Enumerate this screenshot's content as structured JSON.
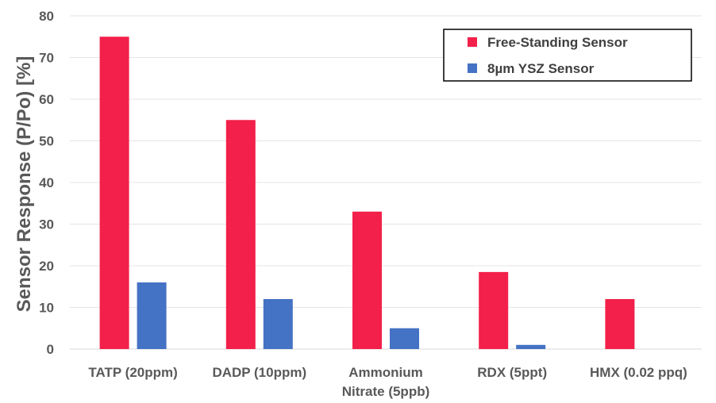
{
  "chart_data": {
    "type": "bar",
    "title": "",
    "xlabel": "",
    "ylabel": "Sensor Response (P/Po) [%]",
    "ylim": [
      0,
      80
    ],
    "yticks": [
      "0",
      "10",
      "20",
      "30",
      "40",
      "50",
      "60",
      "70",
      "80"
    ],
    "grid": true,
    "legend_position": "top-right",
    "categories": [
      [
        "TATP (20ppm)"
      ],
      [
        "DADP (10ppm)"
      ],
      [
        "Ammonium",
        "Nitrate (5ppb)"
      ],
      [
        "RDX (5ppt)"
      ],
      [
        "HMX (0.02 ppq)"
      ]
    ],
    "series": [
      {
        "name": "Free-Standing Sensor",
        "color": "#f2204a",
        "values": [
          75,
          55,
          33,
          18.5,
          12
        ]
      },
      {
        "name": "8µm YSZ Sensor",
        "color": "#4472c4",
        "values": [
          16,
          12,
          5,
          1,
          0
        ]
      }
    ]
  }
}
